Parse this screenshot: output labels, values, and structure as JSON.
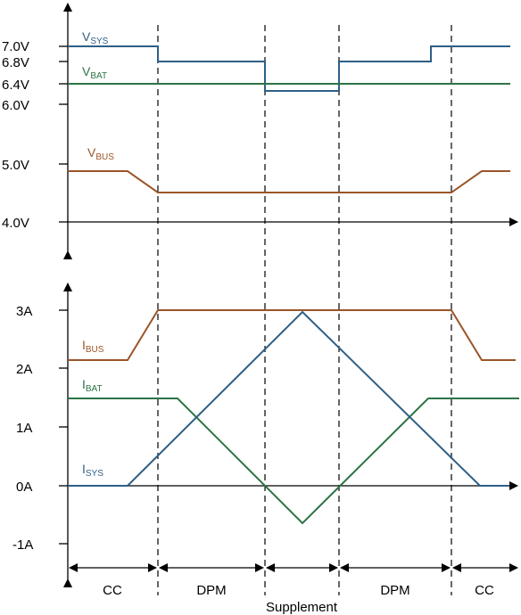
{
  "voltage_panel": {
    "ticks": [
      "7.0V",
      "6.8V",
      "6.4V",
      "6.0V",
      "5.0V",
      "4.0V"
    ],
    "labels": {
      "vsys": {
        "main": "V",
        "sub": "SYS"
      },
      "vbat": {
        "main": "V",
        "sub": "BAT"
      },
      "vbus": {
        "main": "V",
        "sub": "BUS"
      }
    }
  },
  "current_panel": {
    "ticks": [
      "3A",
      "2A",
      "1A",
      "0A",
      "-1A"
    ],
    "labels": {
      "ibus": {
        "main": "I",
        "sub": "BUS"
      },
      "ibat": {
        "main": "I",
        "sub": "BAT"
      },
      "isys": {
        "main": "I",
        "sub": "SYS"
      }
    }
  },
  "phases": [
    "CC",
    "DPM",
    "DPM",
    "CC"
  ],
  "supplement_label": "Supplement",
  "colors": {
    "sys": "#2e5f86",
    "bat": "#2d7346",
    "bus": "#9a5528",
    "axis": "#000000"
  }
}
